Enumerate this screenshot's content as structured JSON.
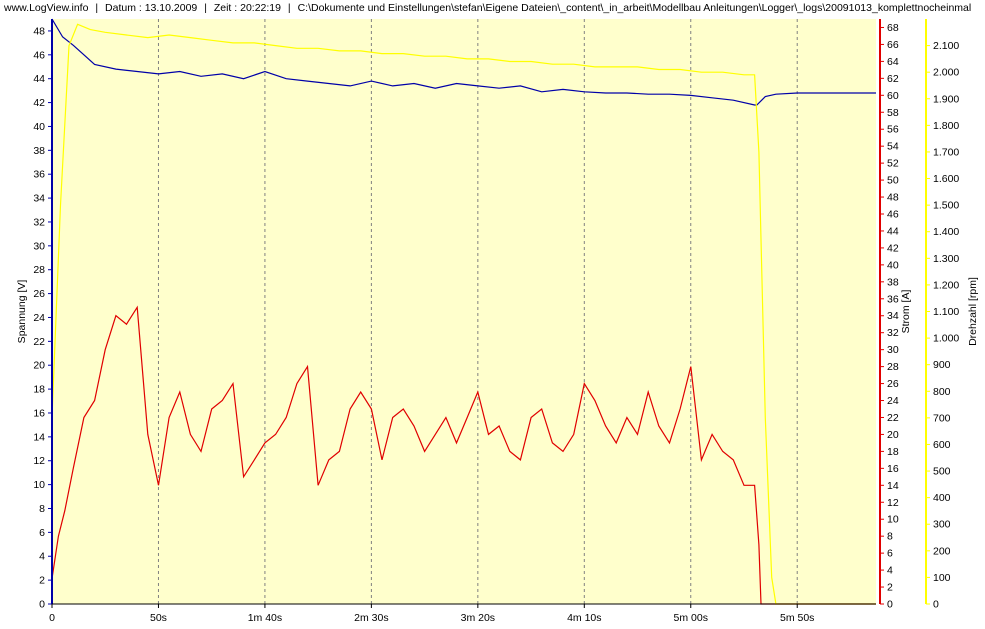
{
  "header": {
    "site": "www.LogView.info",
    "datum": "Datum : 13.10.2009",
    "zeit": "Zeit : 20:22:19",
    "path": "C:\\Dokumente und Einstellungen\\stefan\\Eigene Dateien\\_content\\_in_arbeit\\Modellbau Anleitungen\\Logger\\_logs\\20091013_komplettnocheinmal"
  },
  "colors": {
    "plot_bg": "#ffffcc",
    "voltage": "#0000a8",
    "current": "#e00000",
    "rpm": "#ffff00",
    "grid": "#808080"
  },
  "chart_data": {
    "type": "line",
    "xlabel": "",
    "x_tick_labels": [
      "0",
      "50s",
      "1m 40s",
      "2m 30s",
      "3m 20s",
      "4m 10s",
      "5m 00s",
      "5m 50s"
    ],
    "x_ticks_seconds": [
      0,
      50,
      100,
      150,
      200,
      250,
      300,
      350
    ],
    "xlim": [
      0,
      387
    ],
    "grid": "vertical dashed",
    "axes": [
      {
        "id": "voltage",
        "label": "Spannung [V]",
        "side": "left",
        "ylim": [
          0,
          49
        ],
        "ticks": [
          0,
          2,
          4,
          6,
          8,
          10,
          12,
          14,
          16,
          18,
          20,
          22,
          24,
          26,
          28,
          30,
          32,
          34,
          36,
          38,
          40,
          42,
          44,
          46,
          48
        ]
      },
      {
        "id": "current",
        "label": "Strom [A]",
        "side": "right",
        "ylim": [
          0,
          69
        ],
        "ticks": [
          0,
          2,
          4,
          6,
          8,
          10,
          12,
          14,
          16,
          18,
          20,
          22,
          24,
          26,
          28,
          30,
          32,
          34,
          36,
          38,
          40,
          42,
          44,
          46,
          48,
          50,
          52,
          54,
          56,
          58,
          60,
          62,
          64,
          66,
          68
        ]
      },
      {
        "id": "rpm",
        "label": "Drehzahl [rpm]",
        "side": "right",
        "ylim": [
          0,
          2200
        ],
        "ticks": [
          0,
          100,
          200,
          300,
          400,
          500,
          600,
          700,
          800,
          900,
          1000,
          1100,
          1200,
          1300,
          1400,
          1500,
          1600,
          1700,
          1800,
          1900,
          2000,
          2100
        ],
        "tick_labels": [
          "0",
          "100",
          "200",
          "300",
          "400",
          "500",
          "600",
          "700",
          "800",
          "900",
          "1.000",
          "1.100",
          "1.200",
          "1.300",
          "1.400",
          "1.500",
          "1.600",
          "1.700",
          "1.800",
          "1.900",
          "2.000",
          "2.100"
        ]
      }
    ],
    "series": [
      {
        "name": "Spannung [V]",
        "axis": "voltage",
        "color": "#0000a8",
        "x": [
          0,
          5,
          10,
          15,
          20,
          30,
          40,
          50,
          60,
          70,
          80,
          90,
          100,
          110,
          120,
          130,
          140,
          150,
          160,
          170,
          180,
          190,
          200,
          210,
          220,
          230,
          240,
          250,
          260,
          270,
          280,
          290,
          300,
          310,
          320,
          330,
          331,
          335,
          340,
          350,
          360,
          387
        ],
        "y": [
          49,
          47.5,
          46.8,
          46,
          45.2,
          44.8,
          44.6,
          44.4,
          44.6,
          44.2,
          44.4,
          44,
          44.6,
          44,
          43.8,
          43.6,
          43.4,
          43.8,
          43.4,
          43.6,
          43.2,
          43.6,
          43.4,
          43.2,
          43.4,
          42.9,
          43.1,
          42.9,
          42.8,
          42.8,
          42.7,
          42.7,
          42.6,
          42.4,
          42.2,
          41.8,
          41.8,
          42.5,
          42.7,
          42.8,
          42.8,
          42.8
        ]
      },
      {
        "name": "Strom [A]",
        "axis": "current",
        "color": "#e00000",
        "x": [
          0,
          3,
          6,
          10,
          15,
          20,
          25,
          30,
          35,
          40,
          45,
          50,
          55,
          60,
          65,
          70,
          75,
          80,
          85,
          90,
          95,
          100,
          105,
          110,
          115,
          120,
          125,
          130,
          135,
          140,
          145,
          150,
          155,
          160,
          165,
          170,
          175,
          180,
          185,
          190,
          195,
          200,
          205,
          210,
          215,
          220,
          225,
          230,
          235,
          240,
          245,
          250,
          255,
          260,
          265,
          270,
          275,
          280,
          285,
          290,
          295,
          300,
          305,
          310,
          315,
          320,
          325,
          330,
          332,
          333,
          334,
          387
        ],
        "y": [
          3,
          8,
          11,
          16,
          22,
          24,
          30,
          34,
          33,
          35,
          20,
          14,
          22,
          25,
          20,
          18,
          23,
          24,
          26,
          15,
          17,
          19,
          20,
          22,
          26,
          28,
          14,
          17,
          18,
          23,
          25,
          23,
          17,
          22,
          23,
          21,
          18,
          20,
          22,
          19,
          22,
          25,
          20,
          21,
          18,
          17,
          22,
          23,
          19,
          18,
          20,
          26,
          24,
          21,
          19,
          22,
          20,
          25,
          21,
          19,
          23,
          28,
          17,
          20,
          18,
          17,
          14,
          14,
          7,
          0,
          0,
          0
        ]
      },
      {
        "name": "Drehzahl [rpm]",
        "axis": "rpm",
        "color": "#ffff00",
        "x": [
          0,
          4,
          8,
          12,
          18,
          25,
          35,
          45,
          55,
          65,
          75,
          85,
          95,
          105,
          115,
          125,
          135,
          145,
          155,
          165,
          175,
          185,
          195,
          205,
          215,
          225,
          235,
          245,
          255,
          265,
          275,
          285,
          295,
          305,
          315,
          325,
          330,
          332,
          335,
          338,
          340,
          387
        ],
        "y": [
          700,
          1500,
          2100,
          2180,
          2160,
          2150,
          2140,
          2130,
          2140,
          2130,
          2120,
          2110,
          2110,
          2100,
          2090,
          2090,
          2080,
          2080,
          2070,
          2070,
          2060,
          2060,
          2050,
          2050,
          2040,
          2040,
          2030,
          2030,
          2020,
          2020,
          2020,
          2010,
          2010,
          2000,
          2000,
          1990,
          1990,
          1700,
          700,
          100,
          0,
          0
        ]
      }
    ]
  }
}
